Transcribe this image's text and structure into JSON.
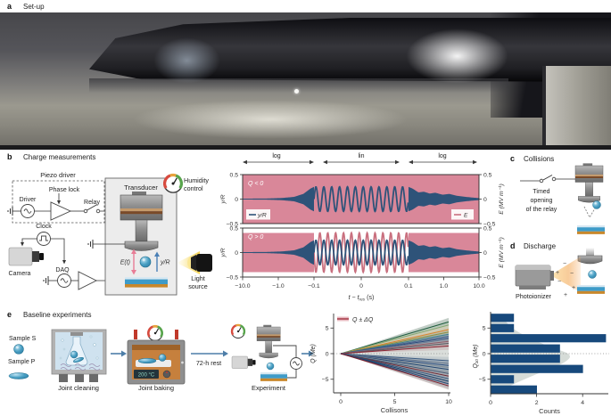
{
  "panels": {
    "a": {
      "tag": "a",
      "title": "Set-up"
    },
    "b": {
      "tag": "b",
      "title": "Charge measurements",
      "diagram": {
        "piezo_driver": "Piezo driver",
        "phase_lock": "Phase lock",
        "driver": "Driver",
        "relay": "Relay",
        "clock": "Clock",
        "camera": "Camera",
        "daq": "DAQ",
        "transducer": "Transducer",
        "humidity_line1": "Humidity",
        "humidity_line2": "control",
        "e_field": "E(t)",
        "y_over_r": "y/R",
        "light_line1": "Light",
        "light_line2": "source"
      }
    },
    "c": {
      "tag": "c",
      "title": "Collisions",
      "caption_line1": "Timed",
      "caption_line2": "opening",
      "caption_line3": "of the relay"
    },
    "d": {
      "tag": "d",
      "title": "Discharge",
      "caption": "Photoionizer"
    },
    "e": {
      "tag": "e",
      "title": "Baseline experiments",
      "sample_s": "Sample S",
      "sample_p": "Sample P",
      "step1": "Joint cleaning",
      "step2": "Joint baking",
      "rest": "72-h rest",
      "step3": "Experiment",
      "oven_temp": "200 °C"
    }
  },
  "chart_data": [
    {
      "id": "oscillation",
      "type": "line",
      "xlabel_parts": {
        "prefix": "t − t",
        "sub": "res",
        "suffix": " (s)"
      },
      "x_ticks": [
        "−10.0",
        "−1.0",
        "−0.1",
        "0",
        "0.1",
        "1.0",
        "10.0"
      ],
      "x_scale": "symlog",
      "scale_segments": [
        "log",
        "lin",
        "log"
      ],
      "ylabel": "y/R",
      "y2label": "E (MV m⁻¹)",
      "y_ticks": [
        "0.5",
        "0",
        "−0.5"
      ],
      "ylim": [
        -0.5,
        0.5
      ],
      "lin_range": [
        -0.1,
        0.1
      ],
      "lin_cycles": 12,
      "panels": [
        {
          "label": "Q < 0",
          "E_amplitude": 0.5,
          "yR_amplitude": 0.5
        },
        {
          "label": "Q > 0",
          "E_amplitude": 0.4,
          "yR_amplitude": 0.5
        }
      ],
      "legend": [
        {
          "text": "y/R"
        },
        {
          "text": "E"
        }
      ],
      "colors": {
        "yR": "#2e5379",
        "E_fill": "#d98799",
        "E_line": "#c9707f"
      },
      "envelope_grow": [
        [
          0,
          0.035
        ],
        [
          0.35,
          0.05
        ],
        [
          0.55,
          0.09
        ],
        [
          0.72,
          0.18
        ],
        [
          0.85,
          0.42
        ],
        [
          0.95,
          0.85
        ],
        [
          1,
          1
        ]
      ],
      "envelope_decay": [
        [
          0,
          1
        ],
        [
          0.06,
          0.85
        ],
        [
          0.14,
          0.55
        ],
        [
          0.22,
          0.6
        ],
        [
          0.3,
          0.45
        ],
        [
          0.38,
          0.52
        ],
        [
          0.48,
          0.36
        ],
        [
          0.58,
          0.42
        ],
        [
          0.68,
          0.28
        ],
        [
          0.78,
          0.2
        ],
        [
          0.88,
          0.14
        ],
        [
          1,
          0.08
        ]
      ]
    },
    {
      "id": "collisions",
      "type": "line",
      "xlabel": "Collisons",
      "ylabel": "Q (Me)",
      "x_ticks": [
        0,
        5,
        10
      ],
      "y_ticks": [
        5,
        0,
        -5
      ],
      "xlim": [
        0,
        10.3
      ],
      "ylim": [
        -7.8,
        7.8
      ],
      "legend": "Q ± ΔQ",
      "legend_color": "#a63a46",
      "legend_band_color": "#e9bcc3",
      "cone": {
        "limit": 7,
        "color": "#dadedb"
      },
      "band_halfwidth": 0.75,
      "series": [
        {
          "end": 6.2,
          "color": "#1e5c3e"
        },
        {
          "end": 5.6,
          "color": "#86a86d"
        },
        {
          "end": 4.7,
          "color": "#d9822b"
        },
        {
          "end": 4.2,
          "color": "#8a8f3f"
        },
        {
          "end": 3.8,
          "color": "#3c7d8c"
        },
        {
          "end": 3.4,
          "color": "#49618c"
        },
        {
          "end": 3.1,
          "color": "#2a4a7b"
        },
        {
          "end": 2.8,
          "color": "#6b7f96"
        },
        {
          "end": 2.4,
          "color": "#8c5a66"
        },
        {
          "end": 2.0,
          "color": "#555b63"
        },
        {
          "end": 1.5,
          "color": "#8f2433"
        },
        {
          "end": -1.4,
          "color": "#3a5a80"
        },
        {
          "end": -1.9,
          "color": "#64748a"
        },
        {
          "end": -2.3,
          "color": "#2a4a7b"
        },
        {
          "end": -2.7,
          "color": "#7e8a94"
        },
        {
          "end": -3.1,
          "color": "#23456f"
        },
        {
          "end": -3.5,
          "color": "#8a97a3"
        },
        {
          "end": -3.9,
          "color": "#405a75"
        },
        {
          "end": -4.4,
          "color": "#6e2a35"
        },
        {
          "end": -4.9,
          "color": "#2e5379"
        },
        {
          "end": -5.4,
          "color": "#1d3f66"
        },
        {
          "end": -5.9,
          "color": "#274c77"
        },
        {
          "end": -6.3,
          "color": "#7c1f2d"
        }
      ]
    },
    {
      "id": "histogram",
      "type": "bar",
      "orientation": "horizontal",
      "xlabel": "Counts",
      "ylabel": "Q̄₁₀ (Me)",
      "x_ticks": [
        0,
        2,
        4
      ],
      "y_ticks": [
        5,
        0,
        -5
      ],
      "bar_color": "#17497c",
      "kde_color": "#d6dcd8",
      "bins": [
        {
          "q": 7,
          "count": 1
        },
        {
          "q": 5,
          "count": 1
        },
        {
          "q": 3,
          "count": 5
        },
        {
          "q": 1,
          "count": 3
        },
        {
          "q": -1,
          "count": 3
        },
        {
          "q": -3,
          "count": 4
        },
        {
          "q": -5,
          "count": 1
        },
        {
          "q": -7,
          "count": 2
        }
      ]
    }
  ]
}
